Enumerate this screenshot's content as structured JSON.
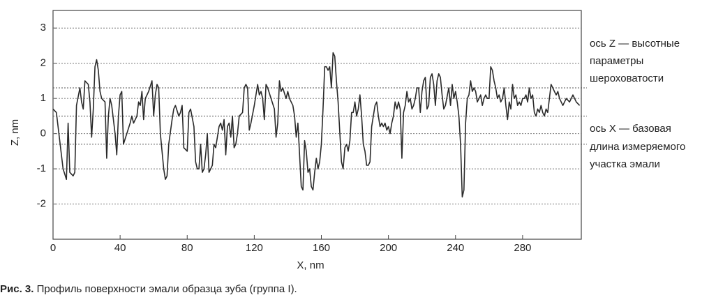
{
  "chart_data": {
    "type": "line",
    "x_label": "X, nm",
    "y_label": "Z, nm",
    "annotations": [
      [
        "ось Z — высотные",
        "параметры",
        "шероховатости"
      ],
      [
        "ось X — базовая",
        "длина измеряемого",
        "участка эмали"
      ]
    ],
    "caption_label": "Рис. 3.",
    "caption": " Профиль поверхности эмали образца зуба (группа I).",
    "xlim": [
      0,
      315
    ],
    "ylim": [
      -3,
      3.5
    ],
    "xticks": [
      0,
      40,
      80,
      120,
      160,
      200,
      240,
      280
    ],
    "yticks": [
      -2,
      -1,
      0,
      1,
      2,
      3
    ],
    "grid": true,
    "reference_lines": [
      1.3,
      0.5,
      -0.3
    ],
    "color": "#2a2a2a",
    "x": [
      0,
      2,
      4,
      6,
      8,
      9,
      10,
      12,
      13,
      14,
      16,
      17,
      18,
      19,
      21,
      22,
      23,
      24,
      25,
      26,
      27,
      28,
      29,
      31,
      32,
      33,
      34,
      35,
      37,
      38,
      39,
      40,
      41,
      42,
      44,
      46,
      47,
      48,
      50,
      51,
      52,
      53,
      54,
      55,
      57,
      59,
      60,
      61,
      62,
      63,
      64,
      66,
      67,
      68,
      69,
      71,
      72,
      73,
      75,
      76,
      77,
      78,
      80,
      81,
      82,
      84,
      85,
      86,
      87,
      88,
      89,
      90,
      91,
      92,
      93,
      94,
      95,
      96,
      97,
      99,
      100,
      101,
      102,
      103,
      104,
      105,
      106,
      107,
      108,
      109,
      110,
      111,
      113,
      114,
      115,
      116,
      117,
      118,
      120,
      122,
      123,
      124,
      125,
      126,
      127,
      128,
      130,
      132,
      133,
      134,
      135,
      136,
      137,
      139,
      140,
      141,
      143,
      144,
      145,
      146,
      147,
      148,
      149,
      150,
      151,
      152,
      153,
      154,
      155,
      156,
      157,
      158,
      159,
      160,
      161,
      162,
      163,
      164,
      165,
      166,
      167,
      168,
      169,
      170,
      172,
      173,
      174,
      175,
      176,
      177,
      178,
      179,
      180,
      181,
      182,
      183,
      184,
      185,
      186,
      187,
      188,
      189,
      190,
      191,
      192,
      193,
      194,
      195,
      196,
      197,
      198,
      199,
      200,
      201,
      202,
      203,
      204,
      205,
      206,
      207,
      208,
      209,
      210,
      211,
      212,
      213,
      214,
      215,
      216,
      217,
      218,
      219,
      220,
      221,
      222,
      223,
      224,
      225,
      226,
      227,
      228,
      229,
      230,
      231,
      232,
      233,
      234,
      236,
      237,
      238,
      239,
      240,
      241,
      242,
      243,
      244,
      245,
      246,
      247,
      248,
      249,
      250,
      251,
      252,
      253,
      254,
      255,
      256,
      257,
      258,
      259,
      260,
      261,
      262,
      263,
      264,
      265,
      266,
      267,
      268,
      269,
      270,
      271,
      272,
      273,
      274,
      275,
      276,
      277,
      278,
      279,
      280,
      281,
      282,
      283,
      284,
      285,
      286,
      287,
      288,
      289,
      290,
      291,
      292,
      293,
      294,
      295,
      296,
      297,
      298,
      299,
      300,
      301,
      302,
      303,
      304,
      306,
      308,
      310,
      312,
      314
    ],
    "values": [
      0.7,
      0.6,
      -0.2,
      -1.0,
      -1.3,
      0.3,
      -1.1,
      -1.2,
      -1.1,
      0.8,
      1.3,
      0.9,
      0.7,
      1.5,
      1.4,
      0.9,
      -0.1,
      0.7,
      1.9,
      2.1,
      1.8,
      1.2,
      1.0,
      0.9,
      -0.7,
      0.5,
      1.0,
      0.8,
      0.0,
      -0.6,
      0.5,
      1.1,
      1.2,
      -0.3,
      0.0,
      0.3,
      0.5,
      0.3,
      0.5,
      0.9,
      0.8,
      1.2,
      0.4,
      1.0,
      1.2,
      1.5,
      0.5,
      1.1,
      1.4,
      1.3,
      0.0,
      -1.0,
      -1.3,
      -1.2,
      -0.3,
      0.4,
      0.7,
      0.8,
      0.5,
      0.6,
      0.8,
      -0.4,
      -0.5,
      0.6,
      0.7,
      0.2,
      -0.8,
      -1.0,
      -1.0,
      -0.3,
      -1.1,
      -1.0,
      -0.6,
      0.0,
      -1.1,
      -1.0,
      -0.9,
      -0.3,
      -0.4,
      0.2,
      0.3,
      0.1,
      0.4,
      -0.6,
      0.2,
      0.3,
      -0.1,
      0.5,
      -0.4,
      -0.3,
      0.0,
      0.5,
      0.6,
      1.3,
      1.4,
      1.3,
      0.1,
      0.3,
      0.8,
      1.4,
      1.1,
      1.2,
      1.0,
      0.4,
      1.4,
      1.3,
      1.0,
      0.7,
      -0.1,
      0.3,
      1.5,
      1.2,
      1.3,
      1.0,
      1.2,
      1.0,
      0.8,
      0.5,
      -0.1,
      0.3,
      -0.6,
      -1.5,
      -1.6,
      -0.2,
      -0.5,
      -1.1,
      -1.0,
      -1.5,
      -1.6,
      -1.1,
      -0.7,
      -1.0,
      -0.8,
      -0.3,
      0.7,
      1.9,
      1.9,
      1.8,
      1.9,
      1.3,
      2.3,
      2.2,
      1.5,
      0.9,
      -0.8,
      -1.0,
      -0.4,
      -0.3,
      -0.5,
      -0.2,
      0.6,
      0.6,
      0.9,
      0.5,
      0.7,
      1.1,
      0.5,
      -0.3,
      -0.5,
      -0.9,
      -0.9,
      -0.8,
      0.2,
      0.5,
      0.8,
      0.9,
      0.5,
      0.2,
      0.3,
      0.2,
      0.3,
      0.1,
      0.2,
      0.0,
      0.3,
      0.5,
      0.9,
      0.7,
      0.9,
      0.7,
      -0.7,
      0.6,
      0.8,
      1.2,
      0.9,
      1.0,
      0.7,
      0.8,
      1.0,
      1.3,
      1.3,
      0.6,
      1.2,
      1.5,
      1.6,
      0.7,
      0.8,
      1.6,
      1.7,
      1.4,
      0.8,
      1.5,
      1.7,
      1.6,
      1.1,
      0.7,
      0.8,
      1.3,
      0.8,
      1.4,
      1.0,
      1.2,
      0.9,
      0.5,
      -0.3,
      -1.8,
      -1.6,
      0.3,
      1.0,
      1.1,
      1.5,
      1.2,
      1.3,
      1.2,
      0.9,
      1.0,
      1.1,
      0.8,
      1.0,
      1.1,
      1.0,
      1.0,
      1.9,
      1.8,
      1.5,
      1.3,
      1.0,
      1.1,
      0.9,
      1.0,
      1.3,
      0.8,
      0.4,
      0.9,
      0.7,
      1.4,
      1.0,
      1.1,
      0.8,
      0.9,
      0.8,
      1.0,
      1.0,
      1.1,
      0.9,
      1.3,
      1.0,
      1.1,
      0.6,
      0.5,
      0.7,
      0.6,
      0.8,
      0.6,
      0.5,
      0.7,
      0.6,
      1.0,
      1.4,
      1.3,
      1.2,
      1.1,
      1.2,
      1.0,
      0.9,
      0.8,
      1.0,
      0.9,
      1.1,
      0.9,
      0.8
    ]
  }
}
